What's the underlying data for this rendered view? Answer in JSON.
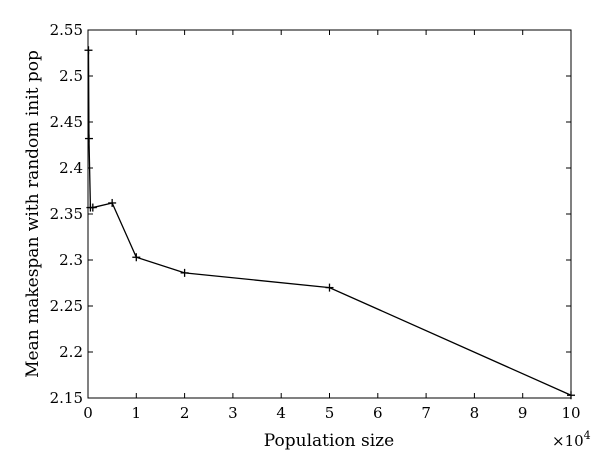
{
  "chart_data": {
    "type": "line",
    "xlabel": "Population size",
    "ylabel": "Mean makespan with random init pop",
    "x_multiplier": "×10",
    "x_multiplier_exp": "4",
    "xlim": [
      0,
      10
    ],
    "ylim": [
      2.15,
      2.55
    ],
    "x_ticks": [
      "0",
      "1",
      "2",
      "3",
      "4",
      "5",
      "6",
      "7",
      "8",
      "9",
      "10"
    ],
    "y_ticks": [
      "2.15",
      "2.2",
      "2.25",
      "2.3",
      "2.35",
      "2.4",
      "2.45",
      "2.5",
      "2.55"
    ],
    "grid": false,
    "marker": "+",
    "series": [
      {
        "x": [
          0.01,
          0.02,
          0.05,
          0.1,
          0.5,
          1,
          2,
          5,
          10
        ],
        "y": [
          2.528,
          2.432,
          2.357,
          2.357,
          2.362,
          2.303,
          2.286,
          2.27,
          2.153
        ]
      }
    ]
  }
}
